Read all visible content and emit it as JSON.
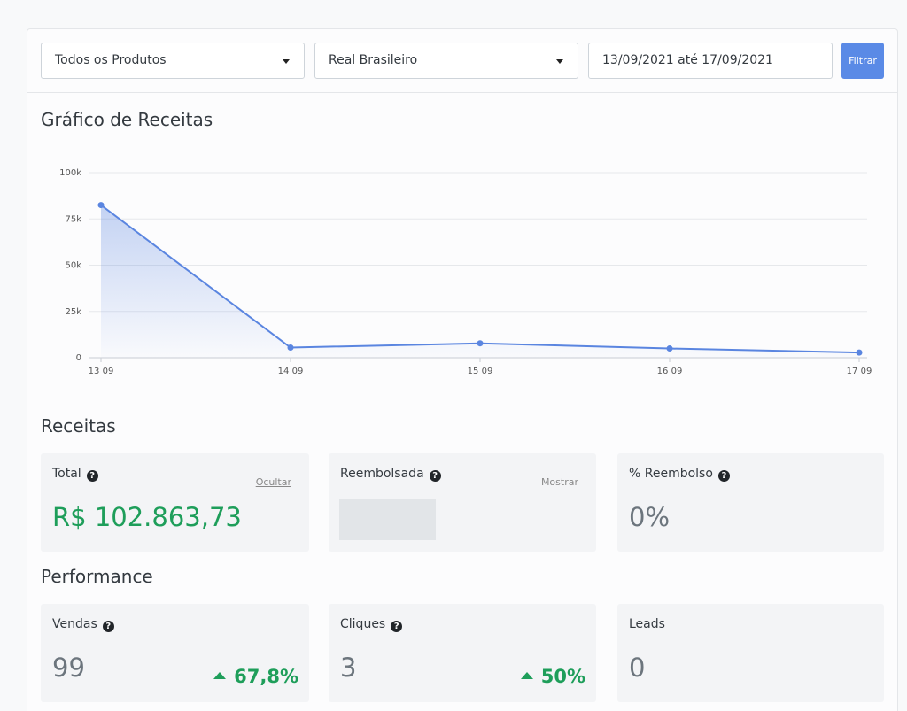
{
  "filters": {
    "product_select": "Todos os Produtos",
    "currency_select": "Real Brasileiro",
    "date_range": "13/09/2021 até 17/09/2021",
    "filter_button": "Filtrar"
  },
  "chart_title": "Gráfico de Receitas",
  "chart_data": {
    "type": "area",
    "title": "Gráfico de Receitas",
    "categories": [
      "13 09",
      "14 09",
      "15 09",
      "16 09",
      "17 09"
    ],
    "values": [
      82500,
      5500,
      7800,
      5000,
      2800
    ],
    "yticks": [
      "0",
      "25k",
      "50k",
      "75k",
      "100k"
    ],
    "ylim": [
      0,
      100000
    ],
    "grid": true,
    "color": "#5a85e0"
  },
  "receitas": {
    "title": "Receitas",
    "total": {
      "label": "Total",
      "action": "Ocultar",
      "value": "R$ 102.863,73"
    },
    "reembolsada": {
      "label": "Reembolsada",
      "action": "Mostrar"
    },
    "reembolso": {
      "label": "% Reembolso",
      "value": "0%"
    }
  },
  "performance": {
    "title": "Performance",
    "vendas": {
      "label": "Vendas",
      "value": "99",
      "delta": "67,8%"
    },
    "cliques": {
      "label": "Cliques",
      "value": "3",
      "delta": "50%"
    },
    "leads": {
      "label": "Leads",
      "value": "0"
    }
  },
  "icons": {
    "help": "?"
  },
  "colors": {
    "accent": "#5a8ae6",
    "positive": "#1e9e5a"
  }
}
